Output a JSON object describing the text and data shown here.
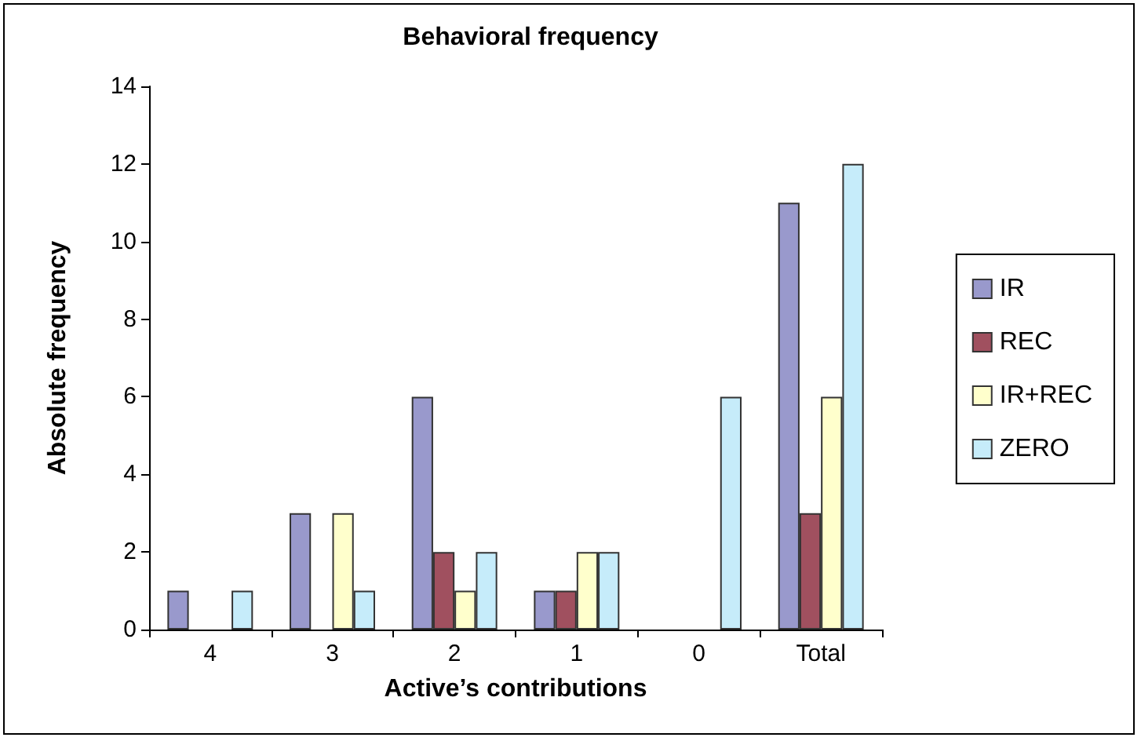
{
  "chart_data": {
    "type": "bar",
    "title": "Behavioral frequency",
    "xlabel": "Active’s contributions",
    "ylabel": "Absolute frequency",
    "categories": [
      "4",
      "3",
      "2",
      "1",
      "0",
      "Total"
    ],
    "series": [
      {
        "name": "IR",
        "color": "#9999cc",
        "values": [
          1,
          3,
          6,
          1,
          0,
          11
        ]
      },
      {
        "name": "REC",
        "color": "#a0505f",
        "values": [
          0,
          0,
          2,
          1,
          0,
          3
        ]
      },
      {
        "name": "IR+REC",
        "color": "#ffffcc",
        "values": [
          0,
          3,
          1,
          2,
          0,
          6
        ]
      },
      {
        "name": "ZERO",
        "color": "#c6ecfa",
        "values": [
          1,
          1,
          2,
          2,
          6,
          12
        ]
      }
    ],
    "ylim": [
      0,
      14
    ],
    "yticks": [
      0,
      2,
      4,
      6,
      8,
      10,
      12,
      14
    ],
    "grid": false,
    "legend": "right"
  }
}
